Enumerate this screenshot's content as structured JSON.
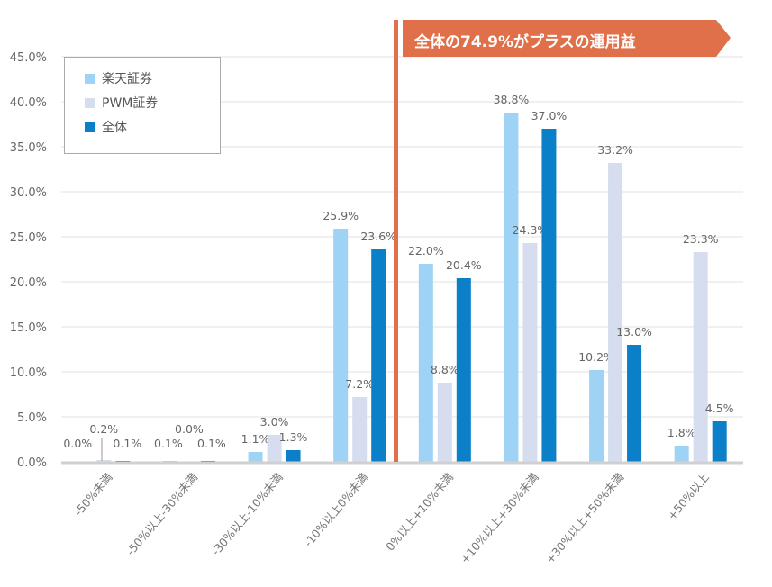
{
  "chart_data": {
    "type": "bar",
    "categories": [
      "-50%未満",
      "-50%以上-30%未満",
      "-30%以上-10%未満",
      "-10%以上0%未満",
      "0%以上+10%未満",
      "+10%以上+30%未満",
      "+30%以上+50%未満",
      "+50%以上"
    ],
    "series": [
      {
        "name": "楽天証券",
        "color": "#9fd3f5",
        "values": [
          0.0,
          0.1,
          1.1,
          25.9,
          22.0,
          38.8,
          10.2,
          1.8
        ],
        "labels": [
          "0.0%",
          "0.1%",
          "1.1%",
          "25.9%",
          "22.0%",
          "38.8%",
          "10.2%",
          "1.8%"
        ]
      },
      {
        "name": "PWM証券",
        "color": "#d6ddee",
        "values": [
          0.2,
          0.0,
          3.0,
          7.2,
          8.8,
          24.3,
          33.2,
          23.3
        ],
        "labels": [
          "0.2%",
          "0.0%",
          "3.0%",
          "7.2%",
          "8.8%",
          "24.3%",
          "33.2%",
          "23.3%"
        ]
      },
      {
        "name": "全体",
        "color": "#0b7fc7",
        "values": [
          0.1,
          0.1,
          1.3,
          23.6,
          20.4,
          37.0,
          13.0,
          4.5
        ],
        "labels": [
          "0.1%",
          "0.1%",
          "1.3%",
          "23.6%",
          "20.4%",
          "37.0%",
          "13.0%",
          "4.5%"
        ]
      }
    ],
    "yticks": [
      "0.0%",
      "5.0%",
      "10.0%",
      "15.0%",
      "20.0%",
      "25.0%",
      "30.0%",
      "35.0%",
      "40.0%",
      "45.0%"
    ],
    "ylim": [
      0,
      45
    ],
    "grid": true,
    "legend": "top-left",
    "annotation": {
      "text": "全体の74.9%がプラスの運用益",
      "color": "#e0704a"
    }
  }
}
